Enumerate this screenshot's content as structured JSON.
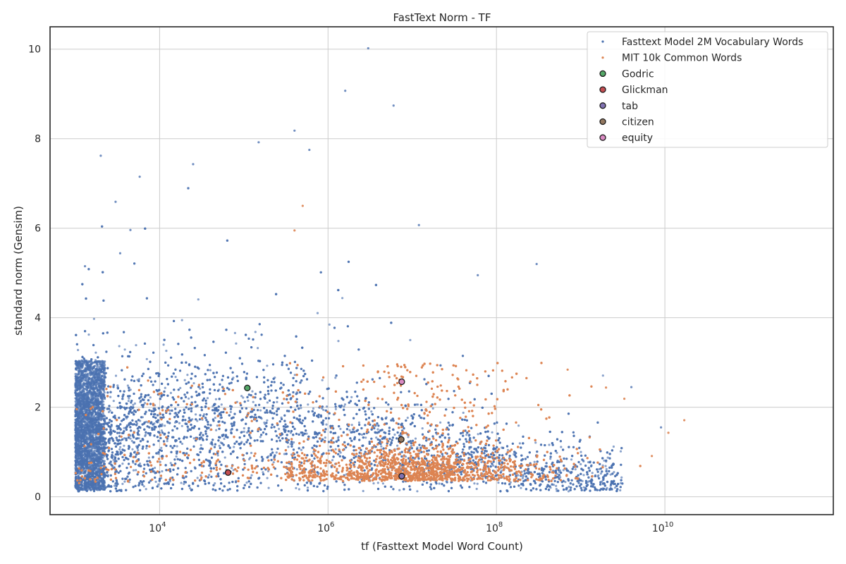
{
  "chart_data": {
    "type": "scatter",
    "title": "FastText Norm - TF",
    "xlabel": "tf (Fasttext Model Word Count)",
    "ylabel": "standard norm (Gensim)",
    "xscale": "log",
    "xlim": [
      500,
      1000000000000
    ],
    "ylim": [
      -0.4,
      10.5
    ],
    "grid": true,
    "legend_position": "top-right",
    "x_ticks": [
      {
        "base": "10",
        "exp": "4",
        "value": 10000
      },
      {
        "base": "10",
        "exp": "6",
        "value": 1000000
      },
      {
        "base": "10",
        "exp": "8",
        "value": 100000000
      },
      {
        "base": "10",
        "exp": "10",
        "value": 10000000000
      }
    ],
    "y_ticks": [
      {
        "label": "0",
        "value": 0
      },
      {
        "label": "2",
        "value": 2
      },
      {
        "label": "4",
        "value": 4
      },
      {
        "label": "6",
        "value": 6
      },
      {
        "label": "8",
        "value": 8
      },
      {
        "label": "10",
        "value": 10
      }
    ],
    "series": [
      {
        "name": "Fasttext Model 2M Vocabulary Words",
        "color": "#4c72b0",
        "marker": "dot",
        "description": "dense cloud, x 1e3..3e9 (log), y 0.1..3.5 mostly, sparse outliers up to 10",
        "outliers": [
          {
            "x": 3000000,
            "y": 10.02
          },
          {
            "x": 1600000,
            "y": 9.07
          },
          {
            "x": 6000000,
            "y": 8.74
          },
          {
            "x": 400000,
            "y": 8.18
          },
          {
            "x": 2000,
            "y": 7.62
          },
          {
            "x": 5800,
            "y": 7.15
          },
          {
            "x": 150000,
            "y": 7.92
          },
          {
            "x": 600000,
            "y": 7.75
          },
          {
            "x": 3000,
            "y": 6.59
          },
          {
            "x": 25000,
            "y": 7.43
          },
          {
            "x": 12000000,
            "y": 6.07
          },
          {
            "x": 4500,
            "y": 5.96
          },
          {
            "x": 3400,
            "y": 5.44
          },
          {
            "x": 1300,
            "y": 5.15
          },
          {
            "x": 300000000,
            "y": 5.2
          },
          {
            "x": 60000000,
            "y": 4.95
          },
          {
            "x": 4000000000,
            "y": 2.45
          },
          {
            "x": 9000000000,
            "y": 1.55
          }
        ]
      },
      {
        "name": "MIT 10k Common Words",
        "color": "#dd8452",
        "marker": "dot",
        "description": "x 1e3..3e10 (log), concentrated 3e5..2e8 at y 0.3..1.3, spread up to 3",
        "outliers": [
          {
            "x": 17000000000,
            "y": 1.71
          },
          {
            "x": 11000000000,
            "y": 1.43
          },
          {
            "x": 7000000000,
            "y": 0.91
          },
          {
            "x": 3300000000,
            "y": 2.19
          },
          {
            "x": 2000000000,
            "y": 2.44
          },
          {
            "x": 700000000,
            "y": 2.84
          },
          {
            "x": 500000,
            "y": 6.5
          },
          {
            "x": 400000,
            "y": 5.95
          }
        ]
      }
    ],
    "highlights": [
      {
        "name": "Godric",
        "x": 110000,
        "y": 2.43,
        "color": "#55a868"
      },
      {
        "name": "Glickman",
        "x": 65000,
        "y": 0.54,
        "color": "#c44e52"
      },
      {
        "name": "tab",
        "x": 7500000,
        "y": 0.46,
        "color": "#8172b2"
      },
      {
        "name": "citizen",
        "x": 7400000,
        "y": 1.28,
        "color": "#937860"
      },
      {
        "name": "equity",
        "x": 7500000,
        "y": 2.57,
        "color": "#da8bc3"
      }
    ]
  }
}
